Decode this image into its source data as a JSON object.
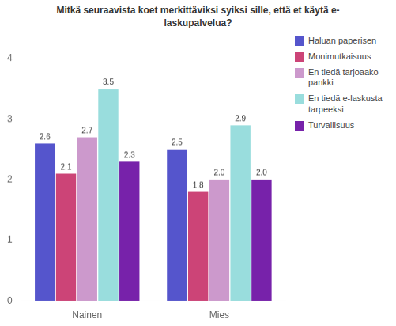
{
  "chart_data": {
    "type": "bar",
    "title": "Mitkä seuraavista koet merkittäviksi syiksi sille, että et käytä e-\nlaskupalvelua?",
    "categories": [
      "Nainen",
      "Mies"
    ],
    "series": [
      {
        "name": "Haluan paperisen",
        "color": "#5555cc",
        "values": [
          2.6,
          2.5
        ],
        "value_labels": [
          "2.6",
          "2.5"
        ]
      },
      {
        "name": "Monimutkaisuus",
        "color": "#cc4477",
        "values": [
          2.1,
          1.8
        ],
        "value_labels": [
          "2.1",
          "1.8"
        ]
      },
      {
        "name": "En tiedä tarjoaako\npankki",
        "color": "#cc99cc",
        "values": [
          2.7,
          2.0
        ],
        "value_labels": [
          "2.7",
          "2.0"
        ]
      },
      {
        "name": "En tiedä e-laskusta\ntarpeeksi",
        "color": "#99dddd",
        "values": [
          3.5,
          2.9
        ],
        "value_labels": [
          "3.5",
          "2.9"
        ]
      },
      {
        "name": "Turvallisuus",
        "color": "#7722aa",
        "values": [
          2.3,
          2.0
        ],
        "value_labels": [
          "2.3",
          "2.0"
        ]
      }
    ],
    "ylim": [
      0,
      4.3
    ],
    "yticks": [
      0,
      1,
      2,
      3,
      4
    ],
    "grid": false,
    "legend": "upper right",
    "data_labels": true
  }
}
